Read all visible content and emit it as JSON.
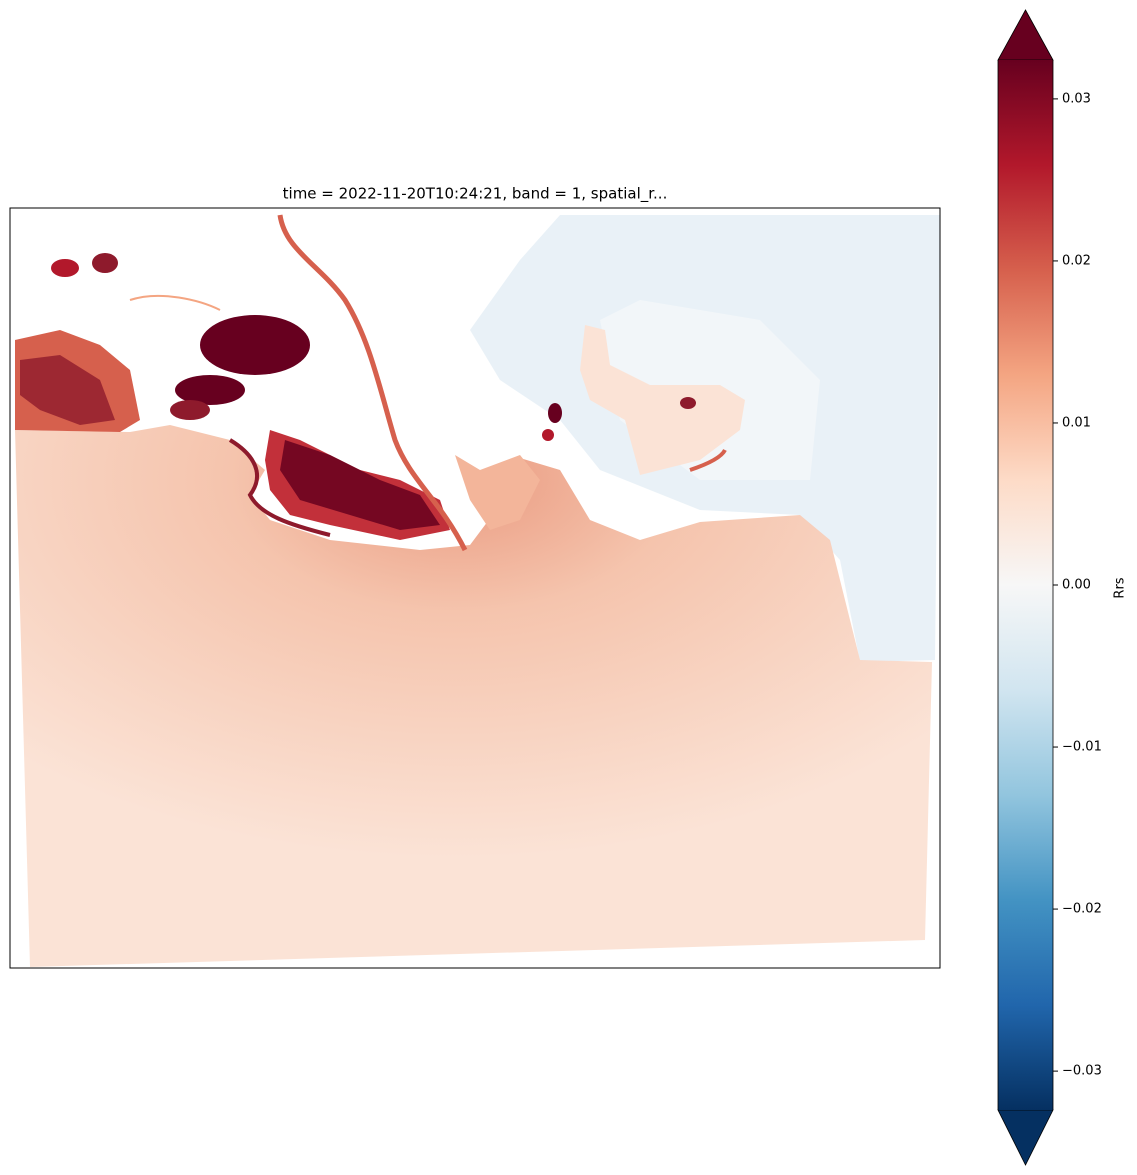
{
  "chart_data": {
    "type": "image",
    "title": "time = 2022-11-20T10:24:21, band = 1, spatial_r...",
    "colorbar": {
      "label": "Rrs",
      "lim": [
        -0.0324,
        0.0324
      ],
      "extend": "both",
      "colors": [
        "#053061",
        "#2166ac",
        "#4393c3",
        "#92c5de",
        "#d1e5f0",
        "#f7f7f7",
        "#fddbc7",
        "#f4a582",
        "#d6604d",
        "#b2182b",
        "#67001f"
      ],
      "ticks": [
        {
          "value": -0.03,
          "label": "−0.03"
        },
        {
          "value": -0.02,
          "label": "−0.02"
        },
        {
          "value": -0.01,
          "label": "−0.01"
        },
        {
          "value": 0,
          "label": "0.00"
        },
        {
          "value": 0.01,
          "label": "0.01"
        },
        {
          "value": 0.02,
          "label": "0.02"
        },
        {
          "value": 0.03,
          "label": "0.03"
        }
      ]
    }
  }
}
